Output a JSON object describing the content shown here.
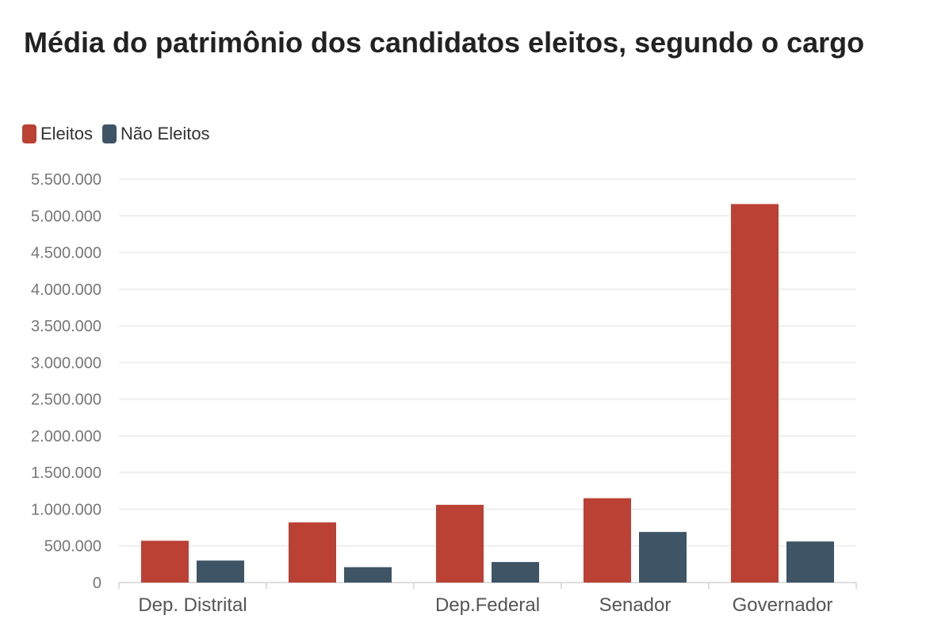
{
  "chart_data": {
    "type": "bar",
    "title": "Média do patrimônio dos candidatos eleitos, segundo o cargo",
    "categories": [
      "Dep. Distrital",
      "",
      "Dep.Federal",
      "Senador",
      "Governador"
    ],
    "series": [
      {
        "name": "Eleitos",
        "color": "#bb4134",
        "values": [
          570000,
          820000,
          1060000,
          1150000,
          5160000
        ]
      },
      {
        "name": "Não Eleitos",
        "color": "#3f5566",
        "values": [
          300000,
          210000,
          280000,
          690000,
          560000
        ]
      }
    ],
    "y_ticks": [
      0,
      500000,
      1000000,
      1500000,
      2000000,
      2500000,
      3000000,
      3500000,
      4000000,
      4500000,
      5000000,
      5500000
    ],
    "y_tick_labels": [
      "0",
      "500.000",
      "1.000.000",
      "1.500.000",
      "2.000.000",
      "2.500.000",
      "3.000.000",
      "3.500.000",
      "4.000.000",
      "4.500.000",
      "5.000.000",
      "5.500.000"
    ],
    "ylim": [
      0,
      5500000
    ],
    "xlabel": "",
    "ylabel": "",
    "grid": true,
    "legend_position": "top-left"
  }
}
